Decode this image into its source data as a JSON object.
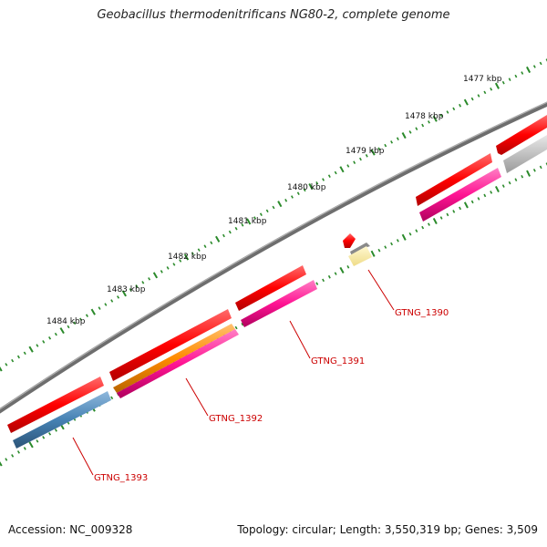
{
  "header": {
    "title": "Geobacillus thermodenitrificans NG80-2, complete genome"
  },
  "footer": {
    "accession": "Accession: NC_009328",
    "summary": "Topology: circular; Length: 3,550,319 bp; Genes: 3,509"
  },
  "ruler": {
    "tick_color": "#2a8a2a",
    "labels": [
      "1477 kbp",
      "1478 kbp",
      "1479 kbp",
      "1480 kbp",
      "1481 kbp",
      "1482 kbp",
      "1483 kbp",
      "1484 kbp"
    ]
  },
  "genes": [
    {
      "name": "GTNG_1390",
      "color": "#ff0000"
    },
    {
      "name": "GTNG_1391",
      "color": "#ff1493"
    },
    {
      "name": "GTNG_1392",
      "color": "#ff8c00"
    },
    {
      "name": "GTNG_1393",
      "color": "#4682b4"
    }
  ],
  "colors": {
    "backbone": "#808080",
    "forward_feature": "#ff0000",
    "reverse_feature_pink": "#ff1493",
    "orange_feature": "#ff8c00",
    "blue_feature": "#4682b4",
    "pale_feature": "#f5e6a0",
    "grey_feature": "#c0c0c0",
    "label_color": "#cc0000"
  }
}
